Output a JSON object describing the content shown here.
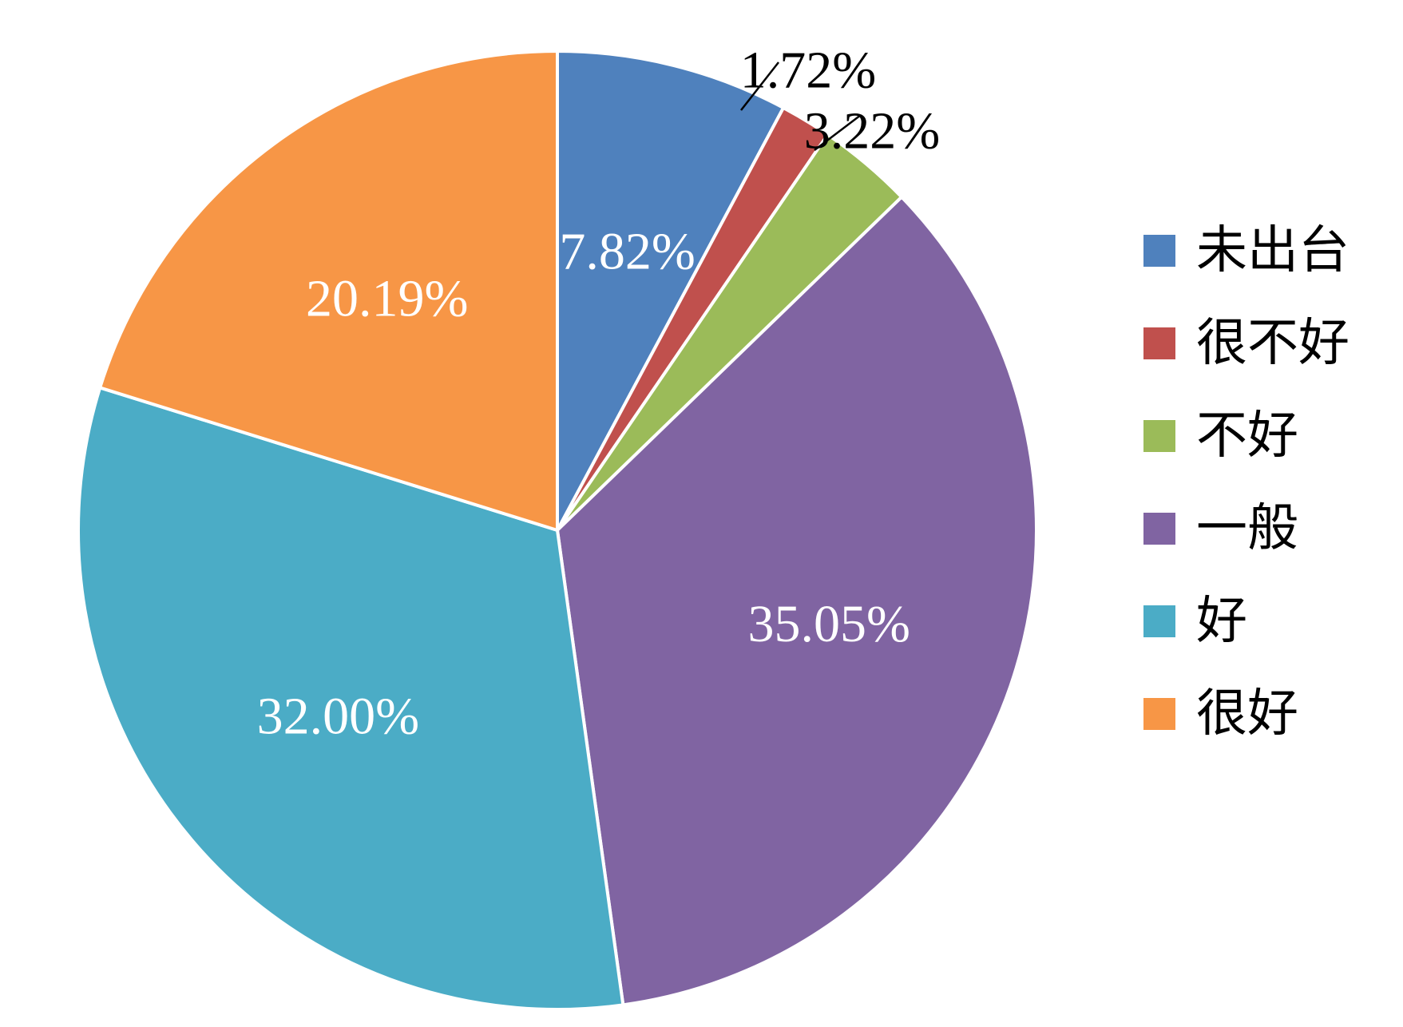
{
  "chart_data": {
    "type": "pie",
    "title": "",
    "start_angle_deg": 0,
    "direction": "clockwise",
    "legend_position": "right",
    "slices": [
      {
        "label": "未出台",
        "value": 7.82,
        "value_label": "7.82%",
        "color": "#4f81bd",
        "label_placement": "inside"
      },
      {
        "label": "很不好",
        "value": 1.72,
        "value_label": "1.72%",
        "color": "#c0504d",
        "label_placement": "outside"
      },
      {
        "label": "不好",
        "value": 3.22,
        "value_label": "3.22%",
        "color": "#9bbb59",
        "label_placement": "outside"
      },
      {
        "label": "一般",
        "value": 35.05,
        "value_label": "35.05%",
        "color": "#8064a2",
        "label_placement": "inside"
      },
      {
        "label": "好",
        "value": 32.0,
        "value_label": "32.00%",
        "color": "#4bacc6",
        "label_placement": "inside"
      },
      {
        "label": "很好",
        "value": 20.19,
        "value_label": "20.19%",
        "color": "#f79646",
        "label_placement": "inside"
      }
    ]
  }
}
